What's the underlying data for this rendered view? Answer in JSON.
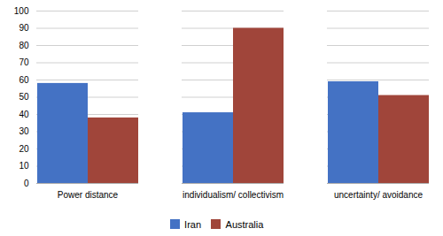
{
  "chart_data": {
    "type": "bar",
    "categories": [
      "Power distance",
      "individualism/ collectivism",
      "uncertainty/ avoidance"
    ],
    "series": [
      {
        "name": "Iran",
        "color": "#4472C4",
        "values": [
          58,
          41,
          59
        ]
      },
      {
        "name": "Australia",
        "color": "#A0453A",
        "values": [
          38,
          90,
          51
        ]
      }
    ],
    "ylim": [
      0,
      100
    ],
    "yticks": [
      0,
      10,
      20,
      30,
      40,
      50,
      60,
      70,
      80,
      90,
      100
    ],
    "grid": true,
    "legend": "bottom"
  }
}
